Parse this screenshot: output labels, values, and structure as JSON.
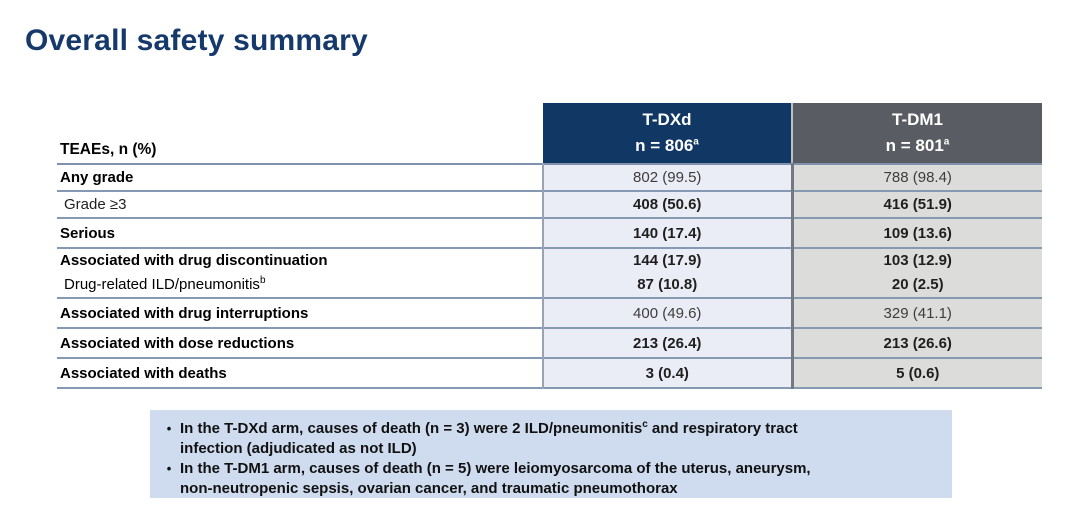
{
  "page": {
    "title": "Overall safety summary"
  },
  "colors": {
    "title_navy": "#16396b",
    "header_tdxd_bg": "#113765",
    "header_tdm1_bg": "#595d63",
    "cell_tdxd_bg": "#eaedf6",
    "cell_tdm1_bg": "#dcdcda",
    "row_border": "#8699b3",
    "notes_bg": "#cfdcef"
  },
  "table": {
    "row_header": "TEAEs, n (%)",
    "columns": [
      {
        "drug": "T-DXd",
        "n_label": "n = 806",
        "n_sup": "a"
      },
      {
        "drug": "T-DM1",
        "n_label": "n = 801",
        "n_sup": "a"
      }
    ],
    "rows": [
      {
        "label": "Any grade",
        "tdxd": "802 (99.5)",
        "tdm1": "788 (98.4)"
      },
      {
        "label": "Grade ≥3",
        "tdxd": "408 (50.6)",
        "tdm1": "416 (51.9)"
      },
      {
        "label": "Serious",
        "tdxd": "140 (17.4)",
        "tdm1": "109 (13.6)"
      },
      {
        "label": "Associated with drug discontinuation",
        "sub_label": "Drug-related ILD/pneumonitis",
        "sub_label_sup": "b",
        "tdxd": "144 (17.9)",
        "sub_tdxd": "87 (10.8)",
        "tdm1": "103 (12.9)",
        "sub_tdm1": "20 (2.5)"
      },
      {
        "label": "Associated with drug interruptions",
        "tdxd": "400 (49.6)",
        "tdm1": "329 (41.1)"
      },
      {
        "label": "Associated with dose reductions",
        "tdxd": "213 (26.4)",
        "tdm1": "213 (26.6)"
      },
      {
        "label": "Associated with deaths",
        "tdxd": "3 (0.4)",
        "tdm1": "5 (0.6)"
      }
    ]
  },
  "notes": {
    "bullet_glyph": "•",
    "items": [
      {
        "pre": "In the T-DXd arm, causes of death (n = 3) were 2 ILD/pneumonitis",
        "sup": "c",
        "post": " and respiratory tract\ninfection (adjudicated as not ILD)"
      },
      {
        "pre": "In the T-DM1 arm, causes of death (n = 5) were leiomyosarcoma of the uterus, aneurysm,\nnon-neutropenic sepsis, ovarian cancer, and traumatic pneumothorax",
        "sup": "",
        "post": ""
      }
    ]
  }
}
